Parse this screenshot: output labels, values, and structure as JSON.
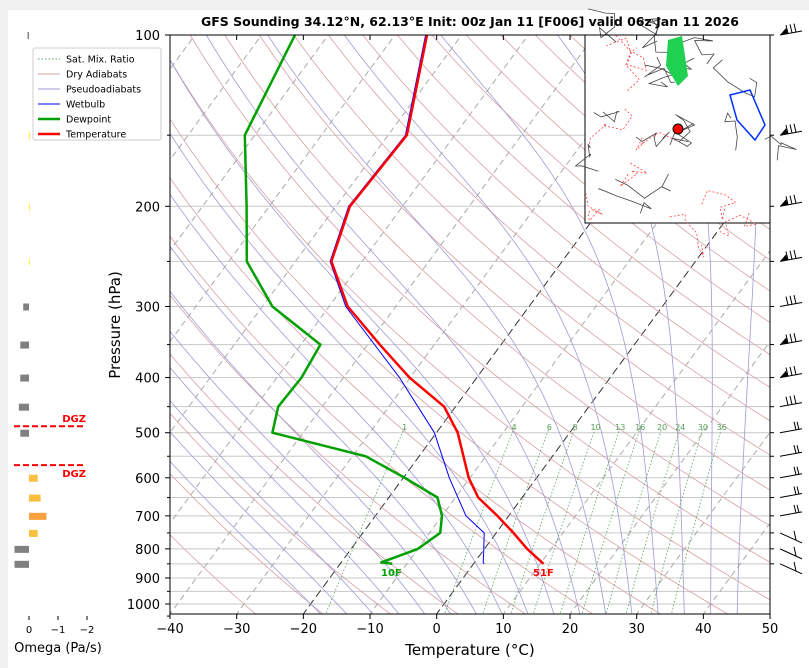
{
  "chart_data": {
    "type": "line",
    "title": "GFS Sounding 34.12°N, 62.13°E Init: 00z Jan 11 [F006] valid 06z Jan 11 2026",
    "xlabel": "Temperature (°C)",
    "ylabel": "Pressure (hPa)",
    "xlim": [
      -40,
      50
    ],
    "ylim": [
      1050,
      100
    ],
    "x_ticks": [
      "−40",
      "−30",
      "−20",
      "−10",
      "0",
      "10",
      "20",
      "30",
      "40",
      "50"
    ],
    "y_ticks": [
      "100",
      "200",
      "300",
      "400",
      "500",
      "600",
      "700",
      "800",
      "900",
      "1000"
    ],
    "legend": {
      "placement": "top-left",
      "entries": [
        "Sat. Mix. Ratio",
        "Dry Adiabats",
        "Pseudoadiabats",
        "Wetbulb",
        "Dewpoint",
        "Temperature"
      ]
    },
    "mixing_ratio_labels": [
      "1",
      "4",
      "6",
      "8",
      "10",
      "13",
      "16",
      "20",
      "24",
      "30",
      "36"
    ],
    "series": [
      {
        "name": "Temperature",
        "color": "#ff0000",
        "pressure": [
          850,
          800,
          750,
          700,
          650,
          600,
          500,
          450,
          400,
          350,
          300,
          250,
          200,
          150,
          100
        ],
        "values": [
          10.5,
          6.4,
          2.6,
          -1.7,
          -6.6,
          -10.2,
          -16.8,
          -21.7,
          -30.1,
          -38.2,
          -47.2,
          -54.6,
          -57.9,
          -57.2,
          -65.2
        ]
      },
      {
        "name": "Dewpoint",
        "color": "#00a000",
        "pressure": [
          850,
          845,
          800,
          750,
          700,
          650,
          600,
          550,
          500,
          450,
          400,
          350,
          300,
          250,
          200,
          150,
          100
        ],
        "values": [
          -12.2,
          -14,
          -10.0,
          -8.4,
          -10.0,
          -12.7,
          -19.8,
          -28,
          -44.6,
          -46.6,
          -46.3,
          -47.1,
          -58.5,
          -67.3,
          -73.4,
          -81.5,
          -85
        ]
      },
      {
        "name": "Wetbulb",
        "color": "#0000ff",
        "pressure": [
          850,
          845,
          800,
          750,
          700,
          600,
          500,
          400,
          300,
          250,
          200,
          150,
          100
        ],
        "values": [
          1.6,
          1.3,
          -0.1,
          -1.8,
          -6.4,
          -13.1,
          -20.3,
          -31.6,
          -47.5,
          -54.8,
          -58.1,
          -57.4,
          -65.4
        ]
      }
    ],
    "surface_labels": {
      "dewpoint": "10F",
      "temperature": "51F"
    },
    "omega": {
      "xlabel": "Omega (Pa/s)",
      "x_ticks": [
        "0",
        "−1",
        "−2"
      ],
      "pressure": [
        100,
        150,
        200,
        250,
        300,
        350,
        400,
        450,
        500,
        600,
        650,
        700,
        750,
        800,
        850
      ],
      "values": [
        0.05,
        -0.02,
        -0.02,
        -0.02,
        0.2,
        0.3,
        0.3,
        0.35,
        0.3,
        -0.3,
        -0.4,
        -0.6,
        -0.3,
        0.5,
        0.5
      ]
    },
    "dgz": {
      "label": "DGZ",
      "top_hpa": 487,
      "bottom_hpa": 570
    },
    "wind_levels_hpa": [
      100,
      150,
      200,
      250,
      300,
      350,
      400,
      450,
      500,
      550,
      600,
      650,
      700,
      750,
      800,
      850
    ]
  }
}
